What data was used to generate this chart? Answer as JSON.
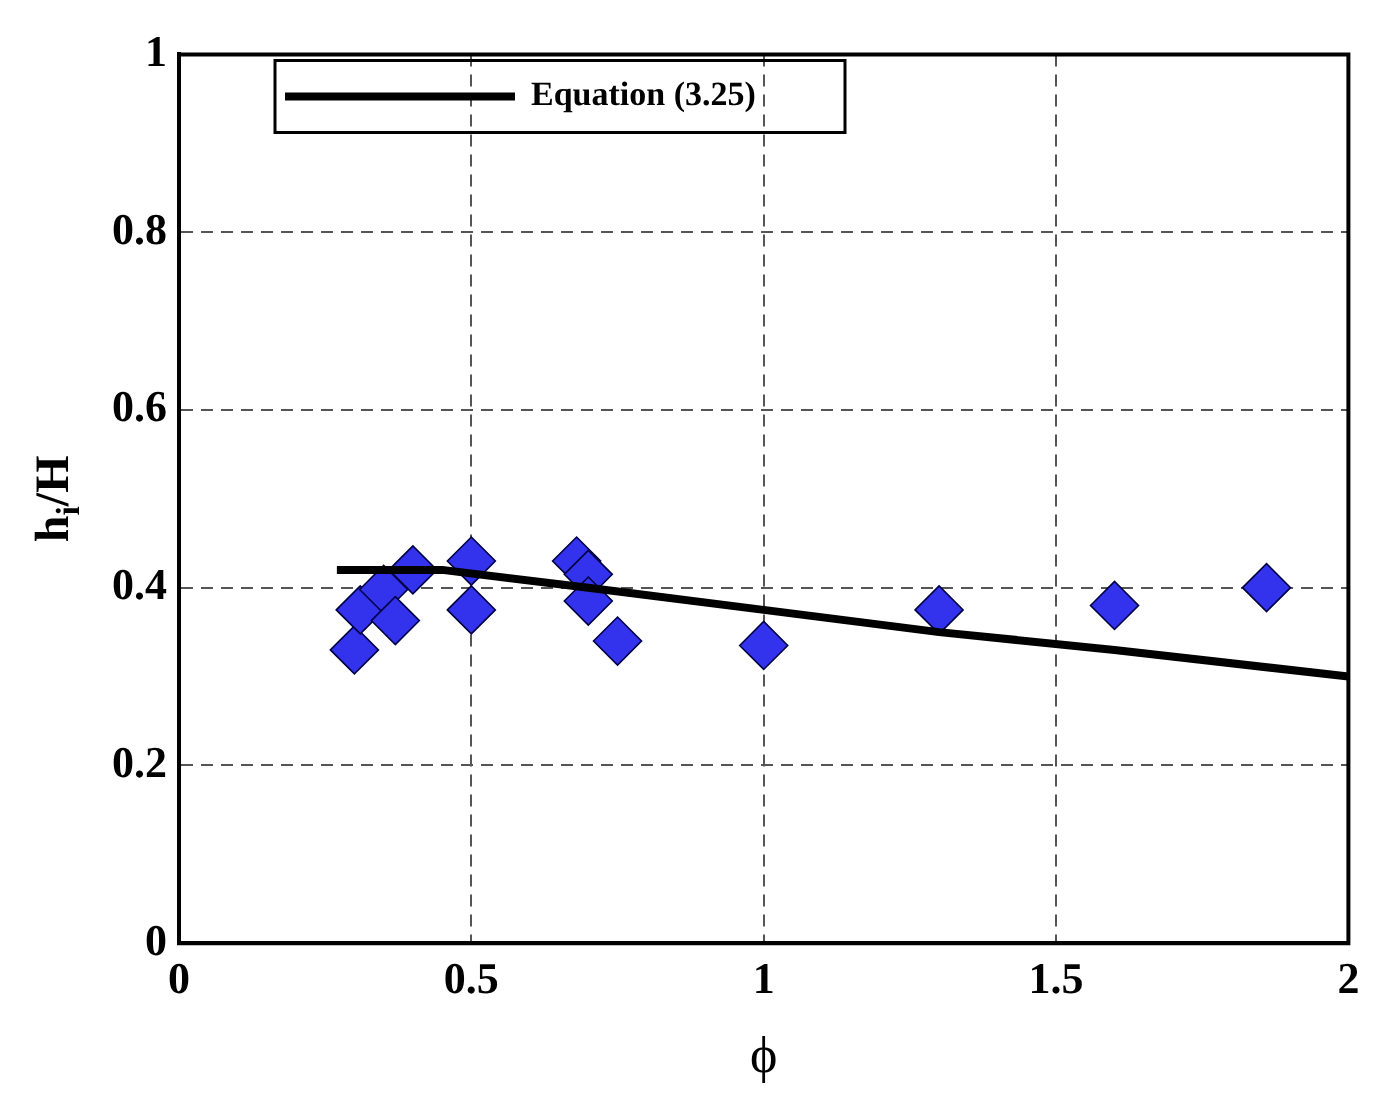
{
  "chart_data": {
    "type": "scatter",
    "xlabel": "ϕ",
    "ylabel": "h$_{i}$/H",
    "xlim": [
      0,
      2
    ],
    "xticks": [
      0,
      0.5,
      1,
      1.5,
      2
    ],
    "ylim": [
      0,
      1
    ],
    "yticks": [
      0,
      0.2,
      0.4,
      0.6,
      0.8,
      1
    ],
    "grid": true,
    "legend": "top left",
    "series": [
      {
        "color": "#3333ee",
        "marker": "diamond",
        "x": [
          0.3,
          0.31,
          0.35,
          0.37,
          0.4,
          0.5,
          0.5,
          0.68,
          0.7,
          0.7,
          0.75,
          1.0,
          1.3,
          1.6,
          1.86
        ],
        "values": [
          0.33,
          0.375,
          0.398,
          0.363,
          0.42,
          0.43,
          0.375,
          0.43,
          0.415,
          0.385,
          0.34,
          0.335,
          0.375,
          0.38,
          0.4
        ]
      },
      {
        "type": "line",
        "name": "Equation (3.25)",
        "color": "#000000",
        "marker": "none",
        "line_style": "solid",
        "x": [
          0.27,
          0.45,
          0.7,
          1.0,
          1.3,
          1.6,
          2.0
        ],
        "values": [
          0.42,
          0.42,
          0.4,
          0.375,
          0.35,
          0.33,
          0.3
        ]
      }
    ]
  }
}
